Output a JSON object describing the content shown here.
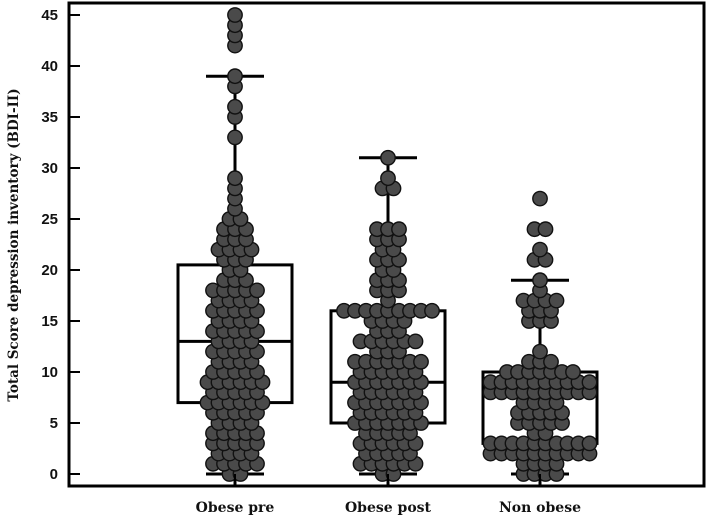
{
  "chart_data": {
    "type": "box",
    "subtype": "box plot with beeswarm dot overlay",
    "title": "",
    "xlabel": "",
    "ylabel": "Total Score depression inventory (BDI-II)",
    "ylim": [
      0,
      45
    ],
    "yticks": [
      0,
      5,
      10,
      15,
      20,
      25,
      30,
      35,
      40,
      45
    ],
    "grid": false,
    "legend": null,
    "categories": [
      "Obese pre",
      "Obese post",
      "Non obese"
    ],
    "series": [
      {
        "name": "Obese pre",
        "box": {
          "whisker_low": 0,
          "q1": 7,
          "median": 13,
          "q3": 20.5,
          "whisker_high": 39
        },
        "outliers": [
          42,
          43,
          44,
          45
        ],
        "points": {
          "0": 2,
          "1": 5,
          "2": 4,
          "3": 5,
          "4": 5,
          "5": 4,
          "6": 5,
          "7": 6,
          "8": 5,
          "9": 6,
          "10": 5,
          "11": 4,
          "12": 5,
          "13": 4,
          "14": 5,
          "15": 4,
          "16": 5,
          "17": 4,
          "18": 5,
          "19": 3,
          "20": 2,
          "21": 3,
          "22": 4,
          "23": 3,
          "24": 3,
          "25": 2,
          "26": 1,
          "27": 1,
          "28": 1,
          "29": 1,
          "33": 1,
          "35": 1,
          "36": 1,
          "38": 1,
          "39": 1,
          "42": 1,
          "43": 1,
          "44": 1,
          "45": 1
        }
      },
      {
        "name": "Obese post",
        "box": {
          "whisker_low": 0,
          "q1": 5,
          "median": 9,
          "q3": 16,
          "whisker_high": 31
        },
        "outliers": [],
        "points": {
          "0": 2,
          "1": 6,
          "2": 5,
          "3": 6,
          "4": 5,
          "5": 7,
          "6": 6,
          "7": 7,
          "8": 6,
          "9": 7,
          "10": 6,
          "11": 7,
          "12": 3,
          "13": 6,
          "14": 3,
          "15": 4,
          "16": 9,
          "17": 1,
          "18": 3,
          "19": 3,
          "20": 2,
          "21": 3,
          "22": 2,
          "23": 3,
          "24": 3,
          "28": 2,
          "29": 1,
          "31": 1
        }
      },
      {
        "name": "Non obese",
        "box": {
          "whisker_low": 0,
          "q1": 3,
          "median": 8,
          "q3": 10,
          "whisker_high": 19
        },
        "outliers": [
          21,
          22,
          24,
          27
        ],
        "points": {
          "0": 4,
          "1": 4,
          "2": 10,
          "3": 10,
          "4": 2,
          "5": 5,
          "6": 5,
          "7": 4,
          "8": 10,
          "9": 10,
          "10": 7,
          "11": 3,
          "12": 1,
          "15": 3,
          "16": 3,
          "17": 4,
          "18": 1,
          "19": 1,
          "21": 2,
          "22": 1,
          "24": 2,
          "27": 1
        }
      }
    ]
  },
  "axis": {
    "y_tick_labels": [
      "0",
      "5",
      "10",
      "15",
      "20",
      "25",
      "30",
      "35",
      "40",
      "45"
    ]
  },
  "style": {
    "dot_fill": "#4a4a4a",
    "dot_stroke": "#111111",
    "line_color": "#000000",
    "background": "#ffffff"
  }
}
